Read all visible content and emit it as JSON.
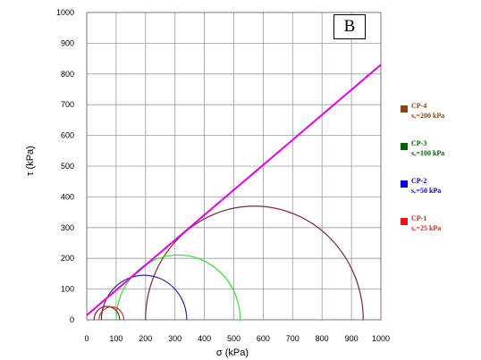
{
  "panel_label": "B",
  "chart_data": {
    "type": "line",
    "xlabel": "σ  (kPa)",
    "ylabel": "τ  (kPa)",
    "xlim": [
      0,
      1000
    ],
    "ylim": [
      0,
      1000
    ],
    "x_ticks": [
      "0",
      "100",
      "200",
      "300",
      "400",
      "500",
      "600",
      "700",
      "800",
      "900",
      "1000"
    ],
    "y_ticks": [
      "0",
      "100",
      "200",
      "300",
      "400",
      "500",
      "600",
      "700",
      "800",
      "900",
      "1000"
    ],
    "grid": true,
    "legend_position": "right",
    "envelope": {
      "color": "#e000e0",
      "x": [
        0,
        1000
      ],
      "y": [
        15,
        830
      ]
    },
    "series": [
      {
        "name": "CP-4",
        "subtitle": "sₒ=200 kPa",
        "color": "#8b4513",
        "legend_text_color": "#8b4513",
        "circles": [
          {
            "sigma3": 200,
            "sigma1": 940,
            "color": "#7a2a2a"
          }
        ]
      },
      {
        "name": "CP-3",
        "subtitle": "sₒ=100 kPa",
        "color": "#006400",
        "legend_text_color": "#006400",
        "circles": [
          {
            "sigma3": 100,
            "sigma1": 522,
            "color": "#33dd33"
          }
        ]
      },
      {
        "name": "CP-2",
        "subtitle": "sₒ=50 kPa",
        "color": "#0000dd",
        "legend_text_color": "#0000cc",
        "circles": [
          {
            "sigma3": 50,
            "sigma1": 340,
            "color": "#2a2aa0"
          }
        ]
      },
      {
        "name": "CP-1",
        "subtitle": "sₒ=25 kPa",
        "color": "#ee1111",
        "legend_text_color": "#cc2222",
        "circles": [
          {
            "sigma3": 25,
            "sigma1": 112,
            "color": "#8a2020"
          },
          {
            "sigma3": 42,
            "sigma1": 126,
            "color": "#dd2222"
          }
        ]
      }
    ]
  }
}
